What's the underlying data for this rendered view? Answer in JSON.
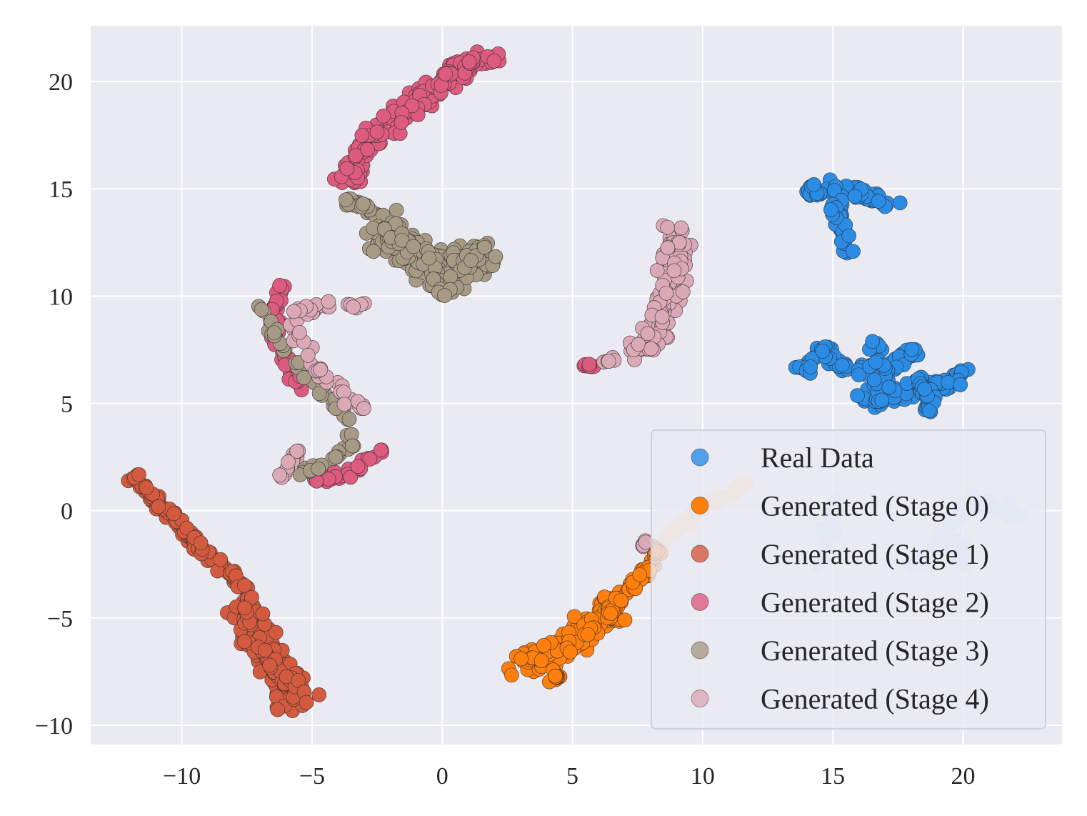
{
  "chart_data": {
    "type": "scatter",
    "title": "",
    "xlabel": "",
    "ylabel": "",
    "xlim": [
      -13.5,
      23.8
    ],
    "ylim": [
      -10.9,
      22.6
    ],
    "x_ticks": [
      -10,
      -5,
      0,
      5,
      10,
      15,
      20
    ],
    "x_tick_labels": [
      "−10",
      "−5",
      "0",
      "5",
      "10",
      "15",
      "20"
    ],
    "y_ticks": [
      -10,
      -5,
      0,
      5,
      10,
      15,
      20
    ],
    "y_tick_labels": [
      "−10",
      "−5",
      "0",
      "5",
      "10",
      "15",
      "20"
    ],
    "grid": true,
    "legend_position": "lower-right",
    "series": [
      {
        "name": "Real Data",
        "color": "#2b8ce6",
        "alpha": 1.0,
        "legend_alpha": 0.8,
        "clusters": [
          {
            "shape": "polyline",
            "spread": 0.3,
            "count": 60,
            "path": [
              [
                14.2,
                14.9
              ],
              [
                15.2,
                15.0
              ],
              [
                16.5,
                14.5
              ],
              [
                17.1,
                14.2
              ]
            ]
          },
          {
            "shape": "polyline",
            "spread": 0.25,
            "count": 30,
            "path": [
              [
                15.1,
                14.6
              ],
              [
                15.3,
                13.2
              ],
              [
                15.5,
                12.1
              ]
            ]
          },
          {
            "shape": "polyline",
            "spread": 0.3,
            "count": 80,
            "path": [
              [
                13.8,
                6.5
              ],
              [
                14.5,
                7.6
              ],
              [
                15.5,
                6.6
              ],
              [
                16.3,
                6.6
              ],
              [
                17.2,
                6.6
              ],
              [
                18.2,
                7.5
              ]
            ]
          },
          {
            "shape": "polyline",
            "spread": 0.35,
            "count": 80,
            "path": [
              [
                16.3,
                5.2
              ],
              [
                17.3,
                5.4
              ],
              [
                18.4,
                5.8
              ],
              [
                19.3,
                6.0
              ],
              [
                20.3,
                6.5
              ]
            ]
          },
          {
            "shape": "polyline",
            "spread": 0.3,
            "count": 25,
            "path": [
              [
                16.5,
                7.8
              ],
              [
                16.7,
                6.5
              ],
              [
                17.0,
                5.5
              ]
            ]
          },
          {
            "shape": "polyline",
            "spread": 0.3,
            "count": 25,
            "path": [
              [
                18.3,
                6.2
              ],
              [
                18.6,
                5.3
              ],
              [
                18.8,
                4.6
              ]
            ]
          }
        ]
      },
      {
        "name": "Generated (Stage 0)",
        "color": "#ff7f0e",
        "alpha": 1.0,
        "legend_alpha": 1.0,
        "clusters": [
          {
            "shape": "polyline",
            "spread": 0.5,
            "count": 160,
            "path": [
              [
                3.2,
                -7.2
              ],
              [
                4.2,
                -6.8
              ],
              [
                5.0,
                -6.0
              ],
              [
                6.0,
                -5.2
              ],
              [
                6.8,
                -4.2
              ]
            ]
          },
          {
            "shape": "polyline",
            "spread": 0.2,
            "count": 60,
            "path": [
              [
                6.4,
                -4.8
              ],
              [
                7.2,
                -3.6
              ],
              [
                7.9,
                -2.6
              ],
              [
                8.4,
                -1.8
              ]
            ]
          },
          {
            "shape": "polyline",
            "spread": 0.2,
            "count": 10,
            "path": [
              [
                4.2,
                -8.0
              ],
              [
                4.4,
                -7.8
              ]
            ]
          }
        ]
      },
      {
        "name": "Generated (Stage 1)",
        "color": "#d35a3e",
        "alpha": 1.0,
        "legend_alpha": 0.8,
        "clusters": [
          {
            "shape": "polyline",
            "spread": 0.22,
            "count": 110,
            "path": [
              [
                -11.9,
                1.8
              ],
              [
                -10.6,
                0.0
              ],
              [
                -9.4,
                -1.6
              ],
              [
                -8.3,
                -2.8
              ],
              [
                -7.5,
                -3.6
              ]
            ]
          },
          {
            "shape": "polyline",
            "spread": 0.6,
            "count": 190,
            "path": [
              [
                -7.6,
                -4.5
              ],
              [
                -7.0,
                -6.0
              ],
              [
                -6.4,
                -7.2
              ],
              [
                -5.9,
                -8.3
              ],
              [
                -5.5,
                -9.0
              ]
            ]
          }
        ]
      },
      {
        "name": "Generated (Stage 2)",
        "color": "#dd5b7f",
        "alpha": 1.0,
        "legend_alpha": 0.8,
        "clusters": [
          {
            "shape": "polyline",
            "spread": 0.45,
            "count": 170,
            "path": [
              [
                -3.6,
                15.3
              ],
              [
                -2.8,
                17.0
              ],
              [
                -1.8,
                18.3
              ],
              [
                -0.8,
                19.3
              ],
              [
                0.2,
                20.2
              ],
              [
                1.2,
                20.9
              ],
              [
                1.9,
                21.1
              ]
            ]
          },
          {
            "shape": "polyline",
            "spread": 0.2,
            "count": 45,
            "path": [
              [
                -6.2,
                10.5
              ],
              [
                -6.5,
                9.2
              ],
              [
                -6.4,
                8.0
              ],
              [
                -6.0,
                6.9
              ],
              [
                -5.6,
                6.2
              ],
              [
                -5.3,
                5.6
              ]
            ]
          },
          {
            "shape": "polyline",
            "spread": 0.2,
            "count": 30,
            "path": [
              [
                -5.0,
                1.5
              ],
              [
                -4.0,
                1.6
              ],
              [
                -3.1,
                2.0
              ],
              [
                -2.4,
                2.6
              ],
              [
                -2.1,
                3.0
              ]
            ]
          },
          {
            "shape": "polyline",
            "spread": 0.1,
            "count": 8,
            "path": [
              [
                5.4,
                6.7
              ],
              [
                5.9,
                6.8
              ]
            ]
          }
        ]
      },
      {
        "name": "Generated (Stage 3)",
        "color": "#a79a85",
        "alpha": 1.0,
        "legend_alpha": 0.8,
        "clusters": [
          {
            "shape": "polyline",
            "spread": 0.2,
            "count": 25,
            "path": [
              [
                -3.8,
                14.5
              ],
              [
                -3.0,
                14.2
              ],
              [
                -2.4,
                13.7
              ]
            ]
          },
          {
            "shape": "polyline",
            "spread": 0.65,
            "count": 230,
            "path": [
              [
                -2.5,
                13.2
              ],
              [
                -1.5,
                12.3
              ],
              [
                -0.6,
                11.4
              ],
              [
                0.2,
                11.3
              ],
              [
                1.0,
                11.7
              ],
              [
                1.8,
                12.0
              ]
            ]
          },
          {
            "shape": "polyline",
            "spread": 0.3,
            "count": 25,
            "path": [
              [
                -0.4,
                10.8
              ],
              [
                0.0,
                10.3
              ],
              [
                0.4,
                10.6
              ]
            ]
          },
          {
            "shape": "polyline",
            "spread": 0.2,
            "count": 60,
            "path": [
              [
                -6.9,
                9.5
              ],
              [
                -6.3,
                7.8
              ],
              [
                -5.4,
                6.6
              ],
              [
                -4.4,
                5.4
              ],
              [
                -3.6,
                4.2
              ],
              [
                -3.6,
                3.0
              ],
              [
                -4.4,
                2.2
              ],
              [
                -5.5,
                1.7
              ]
            ]
          }
        ]
      },
      {
        "name": "Generated (Stage 4)",
        "color": "#dba8b6",
        "alpha": 1.0,
        "legend_alpha": 0.8,
        "clusters": [
          {
            "shape": "polyline",
            "spread": 0.45,
            "count": 160,
            "path": [
              [
                9.0,
                12.9
              ],
              [
                8.8,
                11.4
              ],
              [
                8.6,
                10.0
              ],
              [
                8.4,
                8.8
              ],
              [
                8.0,
                7.9
              ],
              [
                7.4,
                7.5
              ]
            ]
          },
          {
            "shape": "polyline",
            "spread": 0.08,
            "count": 5,
            "path": [
              [
                6.2,
                6.9
              ],
              [
                6.6,
                7.1
              ]
            ]
          },
          {
            "shape": "polyline",
            "spread": 0.22,
            "count": 55,
            "path": [
              [
                -2.9,
                9.6
              ],
              [
                -4.5,
                9.6
              ],
              [
                -5.8,
                9.3
              ],
              [
                -5.6,
                8.2
              ],
              [
                -5.1,
                7.0
              ],
              [
                -4.3,
                6.1
              ],
              [
                -3.6,
                5.3
              ],
              [
                -3.1,
                4.6
              ]
            ]
          },
          {
            "shape": "polyline",
            "spread": 0.18,
            "count": 15,
            "path": [
              [
                -5.6,
                2.9
              ],
              [
                -6.0,
                2.0
              ],
              [
                -6.2,
                1.5
              ]
            ]
          },
          {
            "shape": "polyline",
            "spread": 0.08,
            "count": 8,
            "path": [
              [
                7.6,
                -1.7
              ],
              [
                7.9,
                -1.4
              ]
            ]
          }
        ]
      },
      {
        "name": "Real Data (faded)",
        "color": "#cfe0f5",
        "alpha": 1.0,
        "legend": false,
        "clusters": [
          {
            "shape": "polyline",
            "spread": 0.25,
            "count": 30,
            "path": [
              [
                14.4,
                -2.5
              ],
              [
                14.8,
                -1.5
              ],
              [
                15.0,
                -0.8
              ],
              [
                15.1,
                0.3
              ]
            ]
          },
          {
            "shape": "polyline",
            "spread": 0.25,
            "count": 40,
            "path": [
              [
                18.2,
                -2.6
              ],
              [
                18.8,
                -2.0
              ],
              [
                19.3,
                -1.0
              ],
              [
                19.8,
                0.0
              ],
              [
                20.3,
                0.6
              ]
            ]
          },
          {
            "shape": "polyline",
            "spread": 0.22,
            "count": 25,
            "path": [
              [
                20.0,
                0.2
              ],
              [
                21.0,
                0.3
              ],
              [
                21.8,
                0.0
              ],
              [
                22.2,
                -0.3
              ]
            ]
          },
          {
            "shape": "polyline",
            "spread": 0.2,
            "count": 12,
            "path": [
              [
                19.8,
                -1.3
              ],
              [
                20.1,
                -2.6
              ]
            ]
          }
        ]
      },
      {
        "name": "Generated (Stage 0) (faded)",
        "color": "#fcd4b0",
        "alpha": 1.0,
        "legend": false,
        "clusters": [
          {
            "shape": "polyline",
            "spread": 0.2,
            "count": 35,
            "path": [
              [
                8.4,
                -1.6
              ],
              [
                9.2,
                -0.7
              ],
              [
                10.1,
                0.2
              ],
              [
                10.8,
                0.6
              ]
            ]
          },
          {
            "shape": "polyline",
            "spread": 0.15,
            "count": 10,
            "path": [
              [
                11.1,
                0.9
              ],
              [
                11.8,
                1.3
              ]
            ]
          }
        ]
      }
    ]
  }
}
